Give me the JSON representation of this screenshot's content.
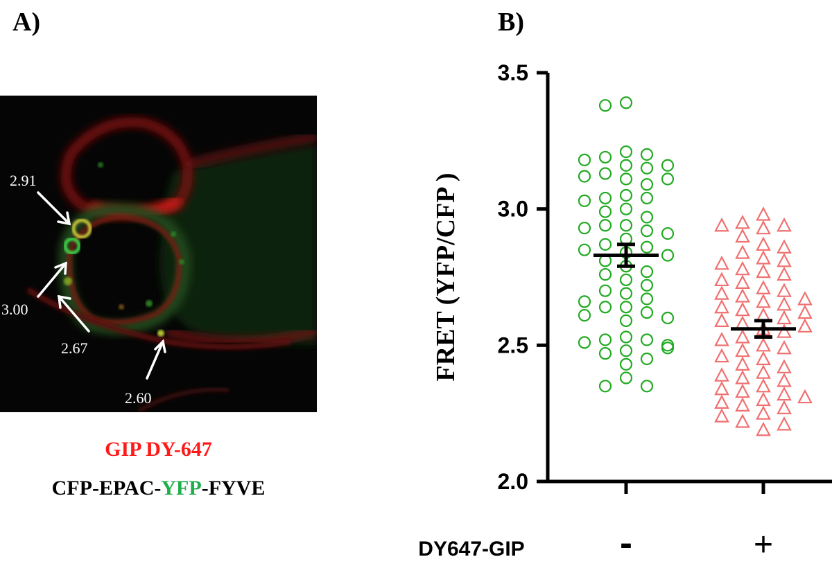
{
  "panels": {
    "a_label": "A)",
    "b_label": "B)"
  },
  "micrograph": {
    "values": [
      "2.91",
      "3.00",
      "2.67",
      "2.60"
    ],
    "legend_line1": "GIP DY-647",
    "legend_line2_parts": [
      "CFP-EPAC-",
      "YFP",
      "-FYVE"
    ]
  },
  "colors": {
    "red_label": "#ff1a1a",
    "green_label": "#1fae4a",
    "control_marker": "#22aa22",
    "treated_marker": "#f07070"
  },
  "chart_data": {
    "type": "scatter",
    "ylabel": "FRET (YFP/CFP )",
    "xlabel": "DY647-GIP",
    "ylim": [
      2.0,
      3.5
    ],
    "yticks": [
      "2.0",
      "2.5",
      "3.0",
      "3.5"
    ],
    "categories": [
      "-",
      "+"
    ],
    "series": [
      {
        "category": "-",
        "marker": "circle",
        "mean": 2.83,
        "sem": 0.04,
        "values": [
          3.39,
          3.38,
          3.21,
          3.19,
          3.2,
          3.18,
          3.16,
          3.16,
          3.15,
          3.13,
          3.12,
          3.11,
          3.11,
          3.09,
          3.05,
          3.04,
          3.04,
          3.03,
          3.0,
          2.99,
          2.97,
          2.94,
          2.94,
          2.93,
          2.92,
          2.91,
          2.89,
          2.87,
          2.86,
          2.85,
          2.84,
          2.83,
          2.81,
          2.79,
          2.77,
          2.76,
          2.74,
          2.72,
          2.7,
          2.69,
          2.67,
          2.66,
          2.64,
          2.64,
          2.62,
          2.61,
          2.6,
          2.59,
          2.53,
          2.52,
          2.52,
          2.51,
          2.5,
          2.49,
          2.48,
          2.47,
          2.45,
          2.43,
          2.38,
          2.35,
          2.35
        ]
      },
      {
        "category": "+",
        "marker": "triangle",
        "mean": 2.56,
        "sem": 0.03,
        "values": [
          2.98,
          2.95,
          2.94,
          2.94,
          2.93,
          2.9,
          2.87,
          2.86,
          2.84,
          2.82,
          2.81,
          2.8,
          2.78,
          2.77,
          2.76,
          2.74,
          2.73,
          2.71,
          2.7,
          2.69,
          2.68,
          2.67,
          2.66,
          2.65,
          2.64,
          2.63,
          2.62,
          2.61,
          2.6,
          2.59,
          2.58,
          2.57,
          2.56,
          2.55,
          2.53,
          2.52,
          2.5,
          2.49,
          2.48,
          2.46,
          2.45,
          2.43,
          2.42,
          2.4,
          2.39,
          2.38,
          2.37,
          2.35,
          2.34,
          2.33,
          2.32,
          2.31,
          2.3,
          2.29,
          2.28,
          2.27,
          2.25,
          2.24,
          2.22,
          2.21,
          2.19
        ]
      }
    ]
  }
}
